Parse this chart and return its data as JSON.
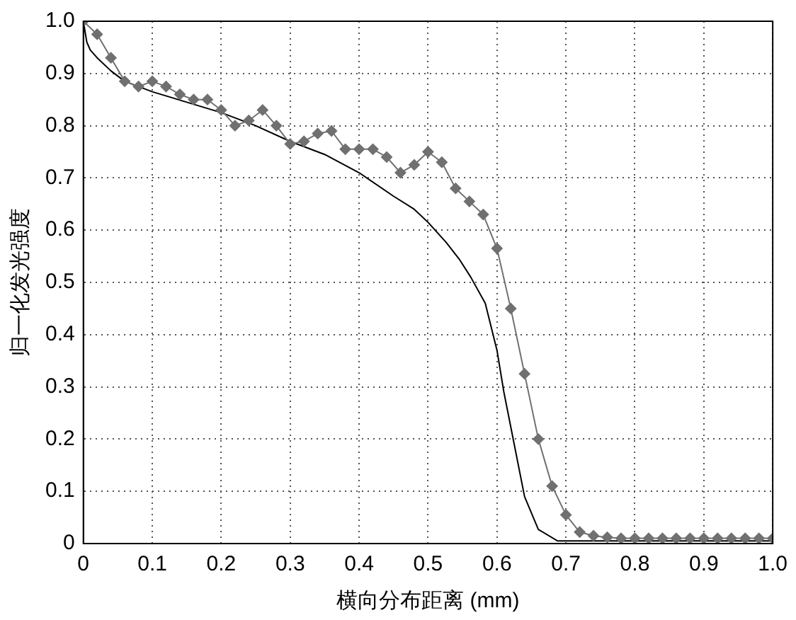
{
  "chart_data": {
    "type": "line",
    "xlabel": "横向分布距离 (mm)",
    "ylabel": "归一化发光强度",
    "xlim": [
      0,
      1
    ],
    "ylim": [
      0,
      1
    ],
    "xticks": [
      0,
      0.1,
      0.2,
      0.3,
      0.4,
      0.5,
      0.6,
      0.7,
      0.8,
      0.9,
      {
        "value": 1,
        "label": "1.0"
      }
    ],
    "yticks": [
      0,
      0.1,
      0.2,
      0.3,
      0.4,
      0.5,
      0.6,
      0.7,
      0.8,
      0.9,
      {
        "value": 1,
        "label": "1.0"
      }
    ],
    "grid": true,
    "legend": false,
    "line_style": "solid",
    "series": [
      {
        "color": "#707070",
        "marker": "diamond",
        "x": [
          0,
          0.02,
          0.04,
          0.06,
          0.08,
          0.1,
          0.12,
          0.14,
          0.16,
          0.18,
          0.2,
          0.22,
          0.24,
          0.26,
          0.28,
          0.3,
          0.32,
          0.34,
          0.36,
          0.38,
          0.4,
          0.42,
          0.44,
          0.46,
          0.48,
          0.5,
          0.52,
          0.54,
          0.56,
          0.58,
          0.6,
          0.62,
          0.64,
          0.66,
          0.68,
          0.7,
          0.72,
          0.74,
          0.76,
          0.78,
          0.8,
          0.82,
          0.84,
          0.86,
          0.88,
          0.9,
          0.92,
          0.94,
          0.96,
          0.98,
          1.0
        ],
        "values": [
          1.0,
          0.975,
          0.93,
          0.885,
          0.875,
          0.885,
          0.875,
          0.86,
          0.85,
          0.85,
          0.83,
          0.8,
          0.81,
          0.83,
          0.8,
          0.765,
          0.77,
          0.785,
          0.79,
          0.755,
          0.755,
          0.755,
          0.74,
          0.71,
          0.725,
          0.75,
          0.73,
          0.68,
          0.655,
          0.63,
          0.565,
          0.45,
          0.325,
          0.2,
          0.11,
          0.055,
          0.022,
          0.015,
          0.012,
          0.01,
          0.01,
          0.01,
          0.01,
          0.01,
          0.01,
          0.01,
          0.01,
          0.01,
          0.01,
          0.01,
          0.01
        ]
      },
      {
        "color": "#000000",
        "marker": "none",
        "x": [
          0,
          0.005,
          0.01,
          0.02,
          0.04,
          0.06,
          0.1,
          0.15,
          0.2,
          0.25,
          0.3,
          0.35,
          0.4,
          0.45,
          0.48,
          0.5,
          0.526,
          0.545,
          0.562,
          0.583,
          0.6,
          0.61,
          0.625,
          0.64,
          0.66,
          0.688,
          0.72,
          0.8,
          0.9,
          1.0
        ],
        "values": [
          1.0,
          0.96,
          0.945,
          0.93,
          0.905,
          0.885,
          0.865,
          0.845,
          0.825,
          0.8,
          0.77,
          0.745,
          0.71,
          0.665,
          0.64,
          0.615,
          0.577,
          0.545,
          0.51,
          0.46,
          0.37,
          0.29,
          0.19,
          0.09,
          0.027,
          0.005,
          0.005,
          0.005,
          0.005,
          0.005
        ]
      }
    ]
  }
}
